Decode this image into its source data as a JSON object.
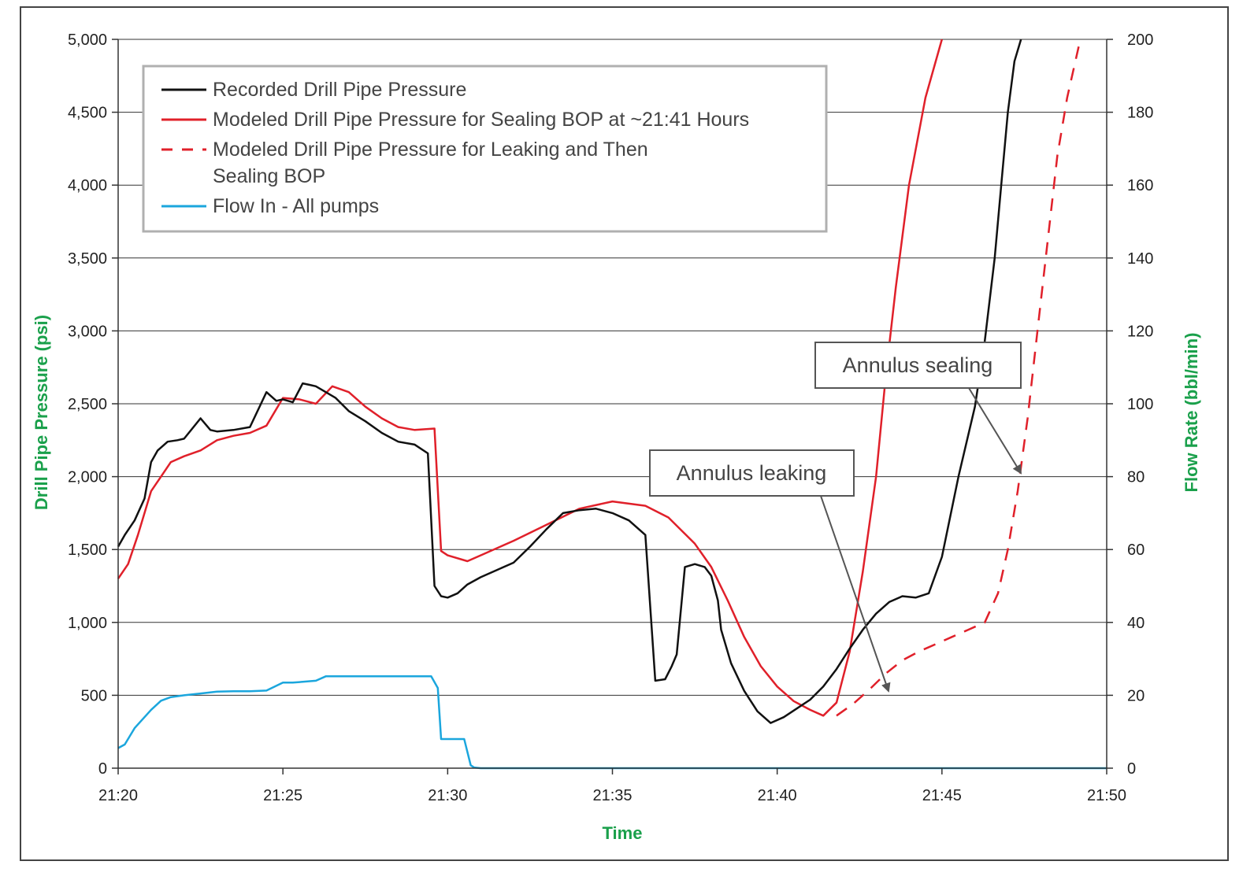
{
  "chart_data": {
    "type": "line",
    "xlabel": "Time",
    "ylabel_left": "Drill Pipe Pressure (psi)",
    "ylabel_right": "Flow Rate (bbl/min)",
    "x_range_minutes": [
      "21:20",
      "21:50"
    ],
    "y_left_range": [
      0,
      5000
    ],
    "y_right_range": [
      0,
      200
    ],
    "x_ticks": [
      "21:20",
      "21:25",
      "21:30",
      "21:35",
      "21:40",
      "21:45",
      "21:50"
    ],
    "y_left_ticks": [
      "0",
      "500",
      "1,000",
      "1,500",
      "2,000",
      "2,500",
      "3,000",
      "3,500",
      "4,000",
      "4,500",
      "5,000"
    ],
    "y_right_ticks": [
      "0",
      "20",
      "40",
      "60",
      "80",
      "100",
      "120",
      "140",
      "160",
      "180",
      "200"
    ],
    "grid": "horizontal",
    "legend_position": "top-left",
    "legend": [
      {
        "label": "Recorded Drill Pipe Pressure",
        "color": "#111111",
        "style": "solid"
      },
      {
        "label": "Modeled Drill Pipe Pressure for Sealing BOP at ~21:41 Hours",
        "color": "#e0202a",
        "style": "solid"
      },
      {
        "label": "Modeled Drill Pipe Pressure for Leaking and Then",
        "label2": "Sealing BOP",
        "color": "#e0202a",
        "style": "dashed"
      },
      {
        "label": "Flow In - All pumps",
        "color": "#1ba6dd",
        "style": "solid"
      }
    ],
    "annotations": [
      {
        "text": "Annulus sealing",
        "x": "21:47.5",
        "y": 2000
      },
      {
        "text": "Annulus leaking",
        "x": "21:43.5",
        "y": 550
      }
    ],
    "series": [
      {
        "name": "Recorded Drill Pipe Pressure",
        "axis": "left",
        "color": "#111111",
        "style": "solid",
        "x": [
          0,
          0.2,
          0.5,
          0.8,
          1.0,
          1.2,
          1.5,
          1.8,
          2.0,
          2.5,
          2.8,
          3.0,
          3.5,
          4.0,
          4.5,
          4.8,
          5.0,
          5.3,
          5.6,
          5.8,
          6.0,
          6.3,
          6.6,
          7.0,
          7.5,
          8.0,
          8.5,
          9.0,
          9.4,
          9.6,
          9.8,
          10.0,
          10.3,
          10.6,
          11.0,
          11.5,
          12.0,
          12.5,
          13.0,
          13.5,
          14.0,
          14.5,
          15.0,
          15.5,
          16.0,
          16.3,
          16.6,
          16.8,
          16.95,
          17.2,
          17.5,
          17.8,
          18.0,
          18.2,
          18.3,
          18.6,
          19.0,
          19.4,
          19.8,
          20.2,
          20.6,
          21.0,
          21.4,
          21.8,
          22.2,
          22.6,
          23.0,
          23.4,
          23.8,
          24.2,
          24.6,
          25.0,
          25.5,
          26.0,
          26.3,
          26.6,
          26.8,
          27.0,
          27.2,
          27.4,
          27.6,
          27.8,
          28.0,
          28.2,
          28.4,
          28.5
        ],
        "y": [
          1520,
          1600,
          1700,
          1850,
          2100,
          2180,
          2240,
          2250,
          2260,
          2400,
          2320,
          2310,
          2320,
          2340,
          2580,
          2520,
          2530,
          2510,
          2640,
          2630,
          2620,
          2580,
          2540,
          2450,
          2380,
          2300,
          2240,
          2220,
          2160,
          1250,
          1180,
          1170,
          1200,
          1260,
          1310,
          1360,
          1410,
          1520,
          1640,
          1750,
          1770,
          1780,
          1750,
          1700,
          1600,
          600,
          610,
          700,
          780,
          1380,
          1400,
          1380,
          1320,
          1150,
          950,
          720,
          530,
          390,
          310,
          350,
          410,
          470,
          560,
          680,
          820,
          950,
          1060,
          1140,
          1180,
          1170,
          1200,
          1450,
          2000,
          2480,
          2930,
          3500,
          4000,
          4500,
          4850,
          5000,
          null,
          null,
          null,
          null,
          null,
          null
        ]
      },
      {
        "name": "Modeled Drill Pipe Pressure for Sealing BOP at ~21:41 Hours",
        "axis": "left",
        "color": "#e0202a",
        "style": "solid",
        "x": [
          0,
          0.3,
          0.6,
          1.0,
          1.3,
          1.6,
          2.0,
          2.5,
          3.0,
          3.5,
          4.0,
          4.5,
          5.0,
          5.5,
          6.0,
          6.5,
          7.0,
          7.5,
          8.0,
          8.5,
          9.0,
          9.6,
          9.8,
          10.0,
          10.6,
          11.0,
          12.0,
          13.0,
          14.0,
          15.0,
          16.0,
          16.7,
          17.5,
          18.0,
          18.5,
          19.0,
          19.5,
          20.0,
          20.5,
          21.0,
          21.4,
          21.8,
          22.2,
          22.6,
          23.0,
          23.3,
          23.6,
          24.0,
          24.5,
          25.0
        ],
        "y": [
          1300,
          1400,
          1600,
          1900,
          2000,
          2100,
          2140,
          2180,
          2250,
          2280,
          2300,
          2350,
          2540,
          2530,
          2500,
          2620,
          2580,
          2480,
          2400,
          2340,
          2320,
          2330,
          1490,
          1460,
          1420,
          1460,
          1560,
          1670,
          1780,
          1830,
          1800,
          1720,
          1540,
          1380,
          1150,
          900,
          700,
          560,
          460,
          400,
          360,
          450,
          800,
          1350,
          2000,
          2700,
          3300,
          4000,
          4600,
          5000
        ]
      },
      {
        "name": "Modeled Drill Pipe Pressure for Leaking and Then Sealing BOP",
        "axis": "left",
        "color": "#e0202a",
        "style": "dashed",
        "x": [
          21.8,
          22.3,
          22.8,
          23.3,
          23.8,
          24.3,
          24.8,
          25.3,
          25.8,
          26.3,
          26.7,
          27.0,
          27.3,
          27.6,
          27.9,
          28.2,
          28.5,
          28.8,
          29.2
        ],
        "y": [
          360,
          440,
          540,
          650,
          740,
          800,
          850,
          900,
          950,
          1000,
          1200,
          1500,
          1900,
          2400,
          3000,
          3600,
          4200,
          4600,
          5000
        ]
      },
      {
        "name": "Flow In - All pumps",
        "axis": "right",
        "color": "#1ba6dd",
        "style": "solid",
        "x": [
          0,
          0.2,
          0.5,
          1.0,
          1.3,
          1.6,
          2.0,
          2.5,
          3.0,
          3.5,
          4.0,
          4.5,
          5.0,
          5.3,
          5.6,
          6.0,
          6.3,
          6.6,
          7.0,
          8.0,
          9.0,
          9.5,
          9.7,
          9.8,
          10.0,
          10.5,
          10.7,
          10.8,
          11.0,
          20.0,
          30.0
        ],
        "y": [
          5.5,
          6.5,
          11,
          16,
          18.5,
          19.5,
          20,
          20.5,
          21,
          21.1,
          21.1,
          21.3,
          23.5,
          23.5,
          23.7,
          24,
          25.2,
          25.2,
          25.2,
          25.2,
          25.2,
          25.2,
          22,
          8,
          8,
          8,
          0.8,
          0.2,
          0,
          0,
          0
        ]
      }
    ]
  }
}
